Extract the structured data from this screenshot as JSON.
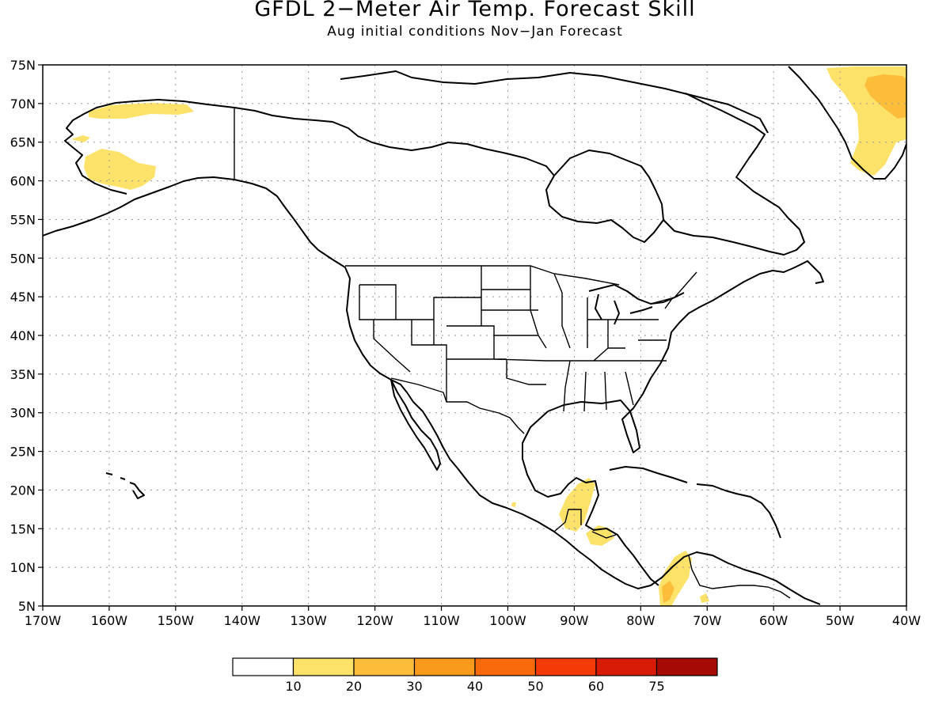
{
  "title": "GFDL 2−Meter Air Temp. Forecast Skill",
  "subtitle": "Aug initial conditions  Nov−Jan Forecast",
  "map": {
    "lon_range": [
      -170,
      -40
    ],
    "lat_range": [
      5,
      75
    ],
    "lon_ticks": [
      {
        "value": -170,
        "label": "170W"
      },
      {
        "value": -160,
        "label": "160W"
      },
      {
        "value": -150,
        "label": "150W"
      },
      {
        "value": -140,
        "label": "140W"
      },
      {
        "value": -130,
        "label": "130W"
      },
      {
        "value": -120,
        "label": "120W"
      },
      {
        "value": -110,
        "label": "110W"
      },
      {
        "value": -100,
        "label": "100W"
      },
      {
        "value": -90,
        "label": "90W"
      },
      {
        "value": -80,
        "label": "80W"
      },
      {
        "value": -70,
        "label": "70W"
      },
      {
        "value": -60,
        "label": "60W"
      },
      {
        "value": -50,
        "label": "50W"
      },
      {
        "value": -40,
        "label": "40W"
      }
    ],
    "lat_ticks": [
      {
        "value": 5,
        "label": "5N"
      },
      {
        "value": 10,
        "label": "10N"
      },
      {
        "value": 15,
        "label": "15N"
      },
      {
        "value": 20,
        "label": "20N"
      },
      {
        "value": 25,
        "label": "25N"
      },
      {
        "value": 30,
        "label": "30N"
      },
      {
        "value": 35,
        "label": "35N"
      },
      {
        "value": 40,
        "label": "40N"
      },
      {
        "value": 45,
        "label": "45N"
      },
      {
        "value": 50,
        "label": "50N"
      },
      {
        "value": 55,
        "label": "55N"
      },
      {
        "value": 60,
        "label": "60N"
      },
      {
        "value": 65,
        "label": "65N"
      },
      {
        "value": 70,
        "label": "70N"
      },
      {
        "value": 75,
        "label": "75N"
      }
    ],
    "grid": true
  },
  "colorbar": {
    "colors": [
      "#ffffff",
      "#fde26a",
      "#fbbd3a",
      "#f99a1c",
      "#f86a0c",
      "#f43b06",
      "#d81b05",
      "#a50a04"
    ],
    "labels": [
      "10",
      "20",
      "30",
      "40",
      "50",
      "60",
      "75"
    ]
  },
  "skill_regions": [
    {
      "name": "alaska-north-slope",
      "level": "10-20"
    },
    {
      "name": "alaska-west",
      "level": "10-20"
    },
    {
      "name": "alaska-interior",
      "level": "10-20"
    },
    {
      "name": "greenland-east",
      "level": "10-20"
    },
    {
      "name": "greenland-east-core",
      "level": "20-30"
    },
    {
      "name": "yucatan-guatemala",
      "level": "10-20"
    },
    {
      "name": "honduras",
      "level": "10-20"
    },
    {
      "name": "colombia",
      "level": "10-20"
    },
    {
      "name": "colombia-core",
      "level": "20-30"
    }
  ]
}
